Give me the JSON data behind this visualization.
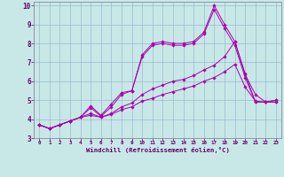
{
  "xlabel": "Windchill (Refroidissement éolien,°C)",
  "bg_color": "#c8e8e8",
  "line_color": "#aa00aa",
  "grid_color": "#99bbcc",
  "xlim": [
    -0.5,
    23.5
  ],
  "ylim": [
    3,
    10.2
  ],
  "xticks": [
    0,
    1,
    2,
    3,
    4,
    5,
    6,
    7,
    8,
    9,
    10,
    11,
    12,
    13,
    14,
    15,
    16,
    17,
    18,
    19,
    20,
    21,
    22,
    23
  ],
  "yticks": [
    3,
    4,
    5,
    6,
    7,
    8,
    9,
    10
  ],
  "curves": [
    {
      "x": [
        0,
        1,
        2,
        3,
        4,
        5,
        6,
        7,
        8,
        9,
        10,
        11,
        12,
        13,
        14,
        15,
        16,
        17,
        18,
        19,
        20,
        21,
        22,
        23
      ],
      "y": [
        3.7,
        3.5,
        3.7,
        3.9,
        4.1,
        4.7,
        4.2,
        4.8,
        5.4,
        5.5,
        7.4,
        8.0,
        8.1,
        8.0,
        8.0,
        8.1,
        8.6,
        10.0,
        9.0,
        8.1,
        6.4,
        4.9,
        4.9,
        5.0
      ]
    },
    {
      "x": [
        0,
        1,
        2,
        3,
        4,
        5,
        6,
        7,
        8,
        9,
        10,
        11,
        12,
        13,
        14,
        15,
        16,
        17,
        18,
        19,
        20,
        21,
        22,
        23
      ],
      "y": [
        3.7,
        3.5,
        3.7,
        3.9,
        4.1,
        4.6,
        4.15,
        4.65,
        5.3,
        5.5,
        7.3,
        7.9,
        8.0,
        7.9,
        7.9,
        8.0,
        8.5,
        9.8,
        8.8,
        7.9,
        6.2,
        4.9,
        4.9,
        5.0
      ]
    },
    {
      "x": [
        0,
        1,
        2,
        3,
        4,
        5,
        6,
        7,
        8,
        9,
        10,
        11,
        12,
        13,
        14,
        15,
        16,
        17,
        18,
        19,
        20,
        21,
        22,
        23
      ],
      "y": [
        3.7,
        3.5,
        3.7,
        3.9,
        4.1,
        4.3,
        4.1,
        4.3,
        4.65,
        4.85,
        5.3,
        5.6,
        5.8,
        6.0,
        6.1,
        6.3,
        6.6,
        6.85,
        7.3,
        8.1,
        6.35,
        5.3,
        4.9,
        4.9
      ]
    },
    {
      "x": [
        0,
        1,
        2,
        3,
        4,
        5,
        6,
        7,
        8,
        9,
        10,
        11,
        12,
        13,
        14,
        15,
        16,
        17,
        18,
        19,
        20,
        21,
        22,
        23
      ],
      "y": [
        3.7,
        3.5,
        3.7,
        3.9,
        4.1,
        4.2,
        4.1,
        4.25,
        4.5,
        4.65,
        4.95,
        5.1,
        5.3,
        5.45,
        5.6,
        5.75,
        6.0,
        6.2,
        6.5,
        6.9,
        5.7,
        4.95,
        4.9,
        4.9
      ]
    }
  ]
}
